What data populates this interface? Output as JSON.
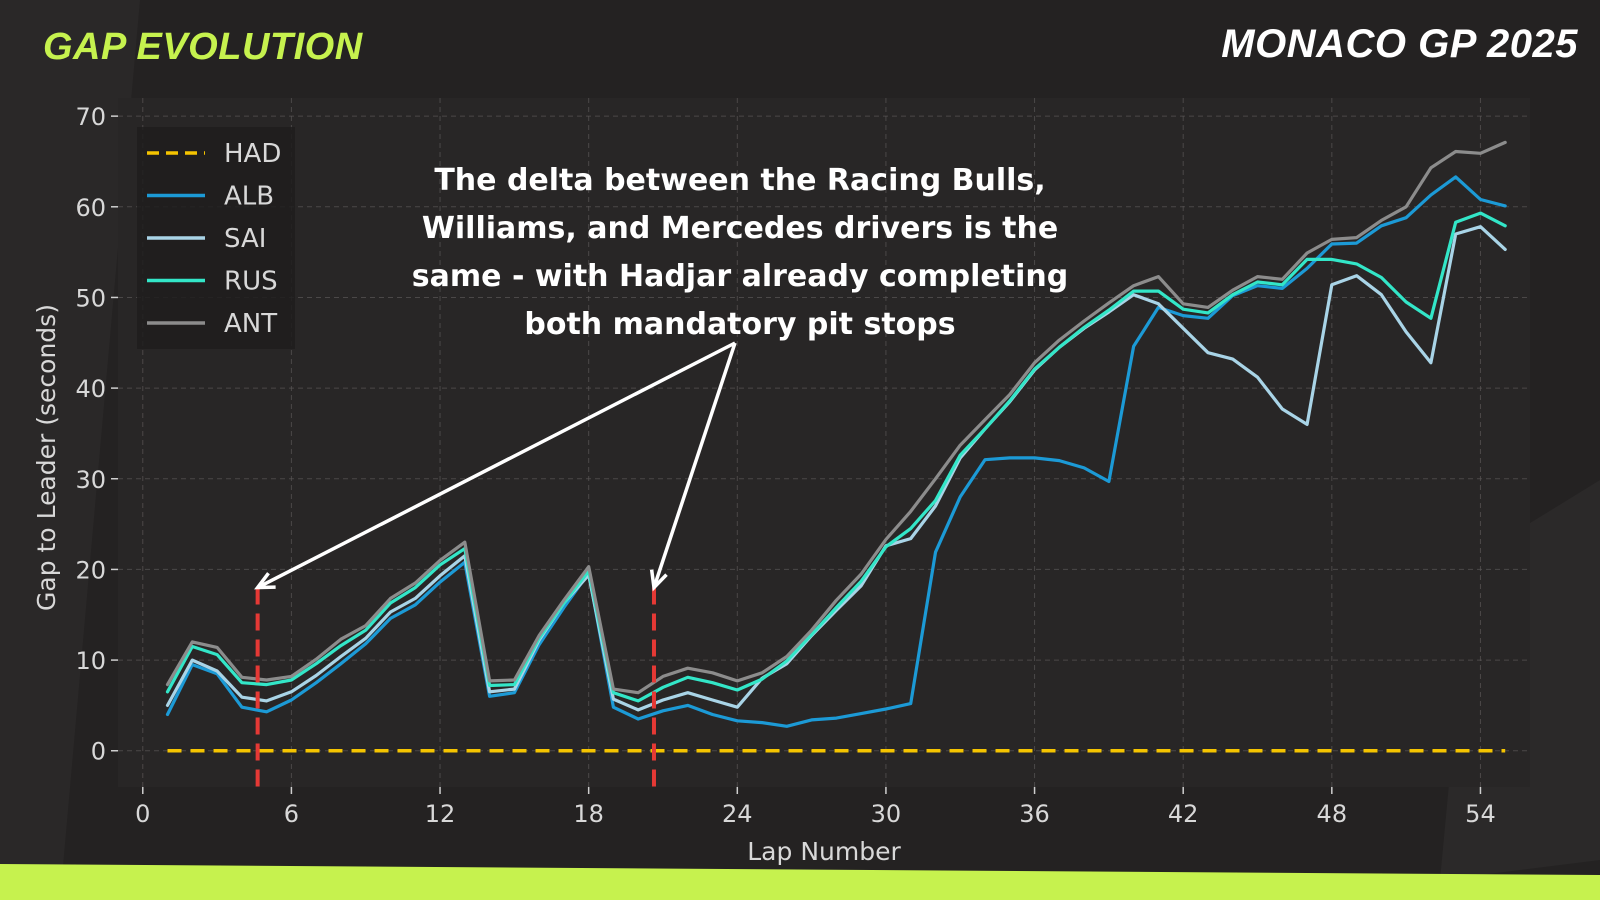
{
  "header": {
    "left_title": "GAP EVOLUTION",
    "right_title": "MONACO GP 2025"
  },
  "colors": {
    "background": "#242222",
    "plot_background": "#282626",
    "accent": "#c6f24e",
    "grid": "#5a5757",
    "marker": "#e53935"
  },
  "annotation": {
    "lines": [
      "The delta between the Racing Bulls,",
      "Williams, and Mercedes drivers is the",
      "same - with Hadjar already completing",
      "both mandatory pit stops"
    ],
    "arrow_targets_laps": [
      5,
      21
    ],
    "marker_laps": [
      5,
      21
    ]
  },
  "chart_data": {
    "type": "line",
    "title": "",
    "xlabel": "Lap Number",
    "ylabel": "Gap to Leader (seconds)",
    "xlim": [
      -1,
      56
    ],
    "ylim": [
      -4,
      72
    ],
    "xticks": [
      0,
      6,
      12,
      18,
      24,
      30,
      36,
      42,
      48,
      54
    ],
    "yticks": [
      0,
      10,
      20,
      30,
      40,
      50,
      60,
      70
    ],
    "grid": true,
    "legend_position": "top-left",
    "x": [
      1,
      2,
      3,
      4,
      5,
      6,
      7,
      8,
      9,
      10,
      11,
      12,
      13,
      14,
      15,
      16,
      17,
      18,
      19,
      20,
      21,
      22,
      23,
      24,
      25,
      26,
      27,
      28,
      29,
      30,
      31,
      32,
      33,
      34,
      35,
      36,
      37,
      38,
      39,
      40,
      41,
      42,
      43,
      44,
      45,
      46,
      47,
      48,
      49,
      50,
      51,
      52,
      53,
      54,
      55
    ],
    "series": [
      {
        "name": "HAD",
        "color": "#f5c400",
        "dash": true,
        "values": [
          0,
          0,
          0,
          0,
          0,
          0,
          0,
          0,
          0,
          0,
          0,
          0,
          0,
          0,
          0,
          0,
          0,
          0,
          0,
          0,
          0,
          0,
          0,
          0,
          0,
          0,
          0,
          0,
          0,
          0,
          0,
          0,
          0,
          0,
          0,
          0,
          0,
          0,
          0,
          0,
          0,
          0,
          0,
          0,
          0,
          0,
          0,
          0,
          0,
          0,
          0,
          0,
          0,
          0,
          0
        ]
      },
      {
        "name": "ALB",
        "color": "#1c9ad6",
        "dash": false,
        "values": [
          4,
          9.5,
          8.5,
          4.8,
          4.3,
          5.6,
          7.5,
          9.6,
          11.8,
          14.6,
          16.1,
          18.6,
          20.8,
          6,
          6.4,
          11.7,
          15.8,
          19.6,
          4.8,
          3.5,
          4.4,
          5,
          4,
          3.3,
          3.1,
          2.7,
          3.4,
          3.6,
          4.1,
          4.6,
          5.2,
          21.9,
          28,
          32.1,
          32.3,
          32.3,
          32,
          31.2,
          29.7,
          44.6,
          48.9,
          48,
          47.7,
          50.2,
          51.3,
          51,
          53.2,
          55.9,
          56,
          57.9,
          58.8,
          61.3,
          63.3,
          60.8,
          60.1
        ]
      },
      {
        "name": "SAI",
        "color": "#a9d4e7",
        "dash": false,
        "values": [
          5,
          10,
          8.8,
          5.9,
          5.5,
          6.5,
          8.3,
          10.4,
          12.4,
          15.3,
          16.8,
          19.3,
          21.5,
          6.5,
          6.8,
          12.2,
          16.3,
          19.4,
          5.7,
          4.5,
          5.6,
          6.4,
          5.6,
          4.8,
          8,
          9.6,
          12.7,
          15.5,
          18.2,
          22.6,
          23.4,
          27,
          32.3,
          35.5,
          38.5,
          42,
          44.5,
          46.6,
          48.4,
          50.3,
          49.3,
          46.6,
          43.9,
          43.2,
          41.2,
          37.7,
          36,
          51.4,
          52.4,
          50.3,
          46.2,
          42.8,
          57,
          57.8,
          55.3
        ]
      },
      {
        "name": "RUS",
        "color": "#33e6c8",
        "dash": false,
        "values": [
          6.5,
          11.5,
          10.6,
          7.5,
          7.3,
          7.8,
          9.6,
          11.6,
          13.3,
          16.3,
          18,
          20.5,
          22.3,
          7.2,
          7.3,
          12.4,
          16.3,
          19.8,
          6.4,
          5.5,
          7,
          8.1,
          7.5,
          6.7,
          7.9,
          9.9,
          12.8,
          15.8,
          18.7,
          22.5,
          24.5,
          27.6,
          32.6,
          35.5,
          38.6,
          42.1,
          44.5,
          46.7,
          48.6,
          50.7,
          50.7,
          48.7,
          48.3,
          50.3,
          51.7,
          51.4,
          54.2,
          54.2,
          53.7,
          52.2,
          49.5,
          47.7,
          58.3,
          59.3,
          57.9
        ]
      },
      {
        "name": "ANT",
        "color": "#8c8c8c",
        "dash": false,
        "values": [
          7.3,
          12,
          11.4,
          8.1,
          7.8,
          8.2,
          10.1,
          12.3,
          13.8,
          16.8,
          18.5,
          21,
          23,
          7.7,
          7.8,
          12.7,
          16.6,
          20.3,
          6.8,
          6.4,
          8.2,
          9.1,
          8.6,
          7.7,
          8.6,
          10.4,
          13.3,
          16.6,
          19.5,
          23.3,
          26.4,
          30,
          33.7,
          36.5,
          39.3,
          42.8,
          45.3,
          47.4,
          49.4,
          51.3,
          52.3,
          49.3,
          48.9,
          50.8,
          52.3,
          52,
          54.9,
          56.4,
          56.6,
          58.5,
          60,
          64.3,
          66.1,
          65.9,
          67.1
        ]
      }
    ]
  }
}
